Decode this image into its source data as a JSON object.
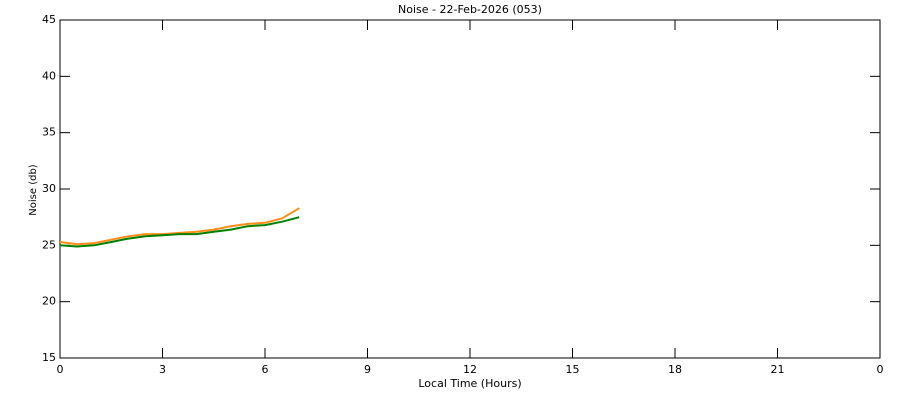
{
  "chart_data": {
    "type": "line",
    "title": "Noise - 22-Feb-2026 (053)",
    "x_label": "Local Time (Hours)",
    "y_label": "Noise (db)",
    "x": [
      0,
      0.5,
      1,
      1.5,
      2,
      2.5,
      3,
      3.5,
      4,
      4.5,
      5,
      5.5,
      6,
      6.5,
      7
    ],
    "series": [
      {
        "color": "#ff8c1a",
        "values": [
          25.3,
          25.1,
          25.2,
          25.5,
          25.8,
          26.0,
          26.0,
          26.1,
          26.2,
          26.4,
          26.7,
          26.9,
          27.0,
          27.4,
          28.3
        ]
      },
      {
        "color": "#008000",
        "values": [
          25.0,
          24.9,
          25.0,
          25.3,
          25.6,
          25.8,
          25.9,
          26.0,
          26.0,
          26.2,
          26.4,
          26.7,
          26.8,
          27.1,
          27.5
        ]
      }
    ],
    "xlim": [
      0,
      24
    ],
    "xticks": [
      0,
      3,
      6,
      9,
      12,
      15,
      18,
      21,
      {
        "value": 24,
        "label": "0"
      }
    ],
    "ylim": [
      15,
      45
    ],
    "yticks": [
      15,
      20,
      25,
      30,
      35,
      40,
      45
    ]
  }
}
